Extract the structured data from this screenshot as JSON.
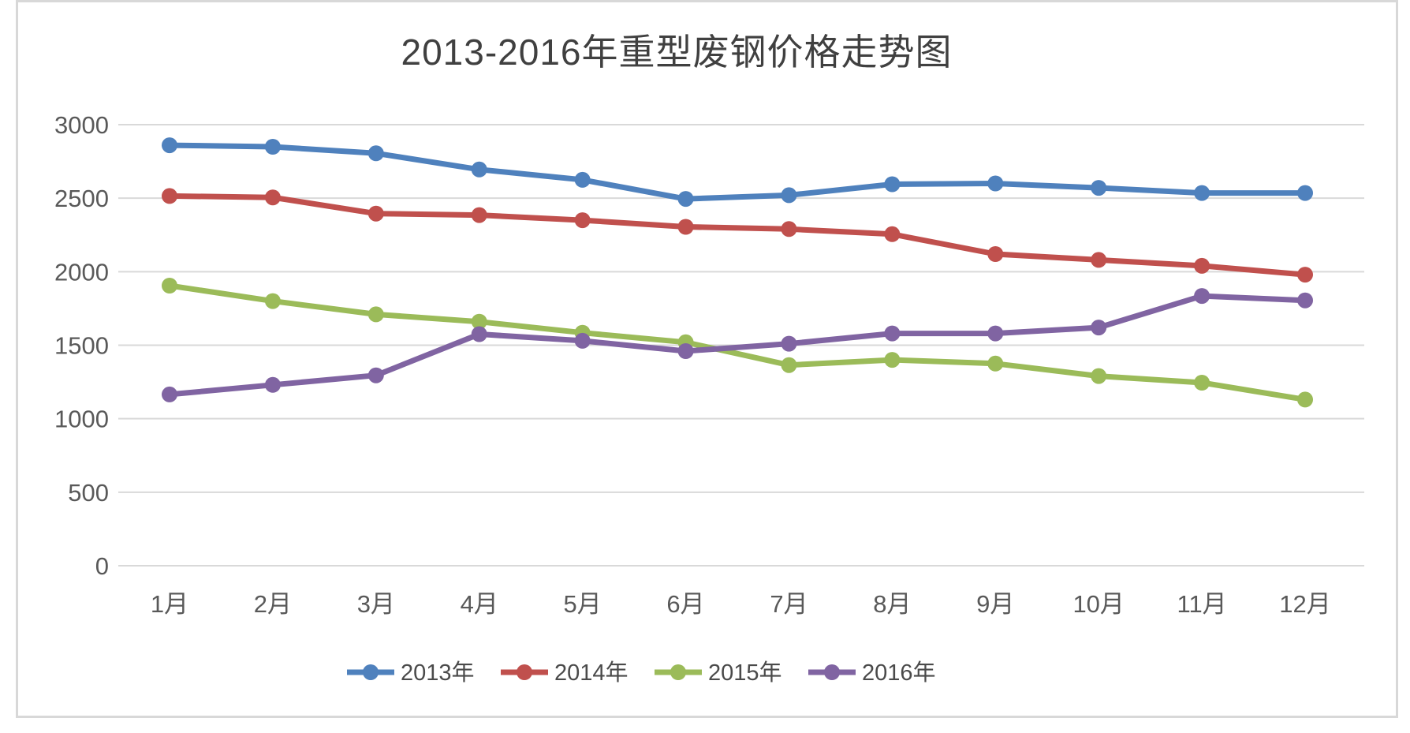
{
  "chart_title": "2013-2016年重型废钢价格走势图",
  "chart_data": {
    "type": "line",
    "title": "2013-2016年重型废钢价格走势图",
    "categories": [
      "1月",
      "2月",
      "3月",
      "4月",
      "5月",
      "6月",
      "7月",
      "8月",
      "9月",
      "10月",
      "11月",
      "12月"
    ],
    "series": [
      {
        "name": "2013年",
        "color": "#4F81BD",
        "values": [
          2860,
          2850,
          2805,
          2695,
          2625,
          2495,
          2520,
          2595,
          2600,
          2570,
          2535,
          2535
        ]
      },
      {
        "name": "2014年",
        "color": "#C0504D",
        "values": [
          2515,
          2505,
          2395,
          2385,
          2350,
          2305,
          2290,
          2255,
          2120,
          2080,
          2040,
          1980
        ]
      },
      {
        "name": "2015年",
        "color": "#9BBB59",
        "values": [
          1905,
          1800,
          1710,
          1660,
          1585,
          1520,
          1365,
          1400,
          1375,
          1290,
          1245,
          1130
        ]
      },
      {
        "name": "2016年",
        "color": "#8064A2",
        "values": [
          1165,
          1230,
          1295,
          1575,
          1530,
          1460,
          1510,
          1580,
          1580,
          1620,
          1835,
          1805
        ]
      }
    ],
    "y_ticks": [
      0,
      500,
      1000,
      1500,
      2000,
      2500,
      3000
    ],
    "ylim": [
      0,
      3000
    ],
    "xlabel": "",
    "ylabel": "",
    "grid": "horizontal",
    "legend_position": "bottom",
    "legend_entries": [
      "2013年",
      "2014年",
      "2015年",
      "2016年"
    ],
    "colors": {
      "gridline": "#D9D9D9",
      "axis_text": "#595959",
      "title_text": "#404040",
      "legend_text": "#4A4A4A",
      "frame_border": "#D8D8D8",
      "background": "#FFFFFF"
    }
  }
}
